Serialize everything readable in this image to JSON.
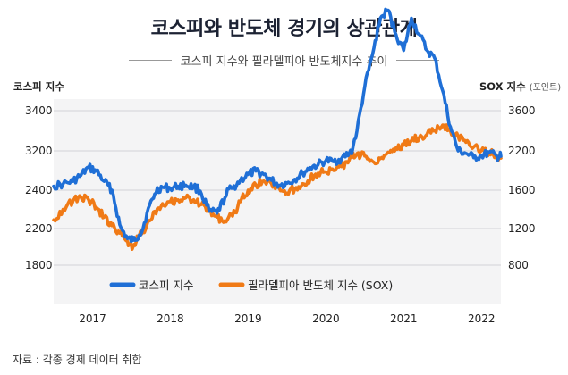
{
  "title": "코스피와 반도체 경기의 상관관계",
  "subtitle": "코스피 지수와 필라델피아 반도체지수 추이",
  "source": "자료 : 각종 경제 데이터 취합",
  "chart_data": {
    "type": "line",
    "title": "코스피와 반도체 경기의 상관관계",
    "xlabel": "",
    "x_ticks": [
      "2017",
      "2018",
      "2019",
      "2020",
      "2021",
      "2022"
    ],
    "xlim": [
      2016.6,
      2022.35
    ],
    "left_axis": {
      "label": "코스피 지수",
      "ticks": [
        3400,
        3200,
        2400,
        2200,
        1800
      ],
      "tick_labels": [
        "3400",
        "3200",
        "2400",
        "2200",
        "1800"
      ]
    },
    "right_axis": {
      "label": "SOX 지수",
      "unit": "(포인트)",
      "ticks": [
        3600,
        2200,
        1600,
        1200,
        800
      ],
      "tick_labels": [
        "3600",
        "2200",
        "1600",
        "1200",
        "800"
      ]
    },
    "series": [
      {
        "name": "코스피 지수",
        "axis": "left",
        "color": "#1f6fd6",
        "x": [
          2016.6,
          2016.72,
          2016.85,
          2016.95,
          2017.05,
          2017.15,
          2017.25,
          2017.35,
          2017.45,
          2017.55,
          2017.62,
          2017.7,
          2017.8,
          2017.9,
          2018.0,
          2018.1,
          2018.2,
          2018.3,
          2018.4,
          2018.5,
          2018.6,
          2018.7,
          2018.8,
          2018.9,
          2019.0,
          2019.1,
          2019.2,
          2019.3,
          2019.4,
          2019.5,
          2019.6,
          2019.7,
          2019.8,
          2019.9,
          2020.0,
          2020.1,
          2020.2,
          2020.3,
          2020.4,
          2020.5,
          2020.6,
          2020.7,
          2020.8,
          2020.9,
          2021.0,
          2021.1,
          2021.2,
          2021.3,
          2021.4,
          2021.5,
          2021.6,
          2021.7,
          2021.8,
          2021.9,
          2022.0,
          2022.1,
          2022.2,
          2022.3,
          2022.35
        ],
        "values": [
          2480,
          2520,
          2580,
          2700,
          2860,
          2790,
          2580,
          2400,
          2220,
          2090,
          2070,
          2130,
          2280,
          2380,
          2460,
          2440,
          2480,
          2500,
          2470,
          2380,
          2290,
          2280,
          2360,
          2440,
          2600,
          2720,
          2790,
          2720,
          2600,
          2500,
          2540,
          2620,
          2740,
          2860,
          2920,
          3000,
          2980,
          3040,
          3150,
          3300,
          3520,
          3680,
          3860,
          3900,
          3780,
          3700,
          3860,
          3780,
          3700,
          3660,
          3500,
          3320,
          3200,
          3150,
          3060,
          3100,
          3160,
          3080,
          3090
        ]
      },
      {
        "name": "필라델피아 반도체 지수 (SOX)",
        "axis": "right",
        "color": "#f07a16",
        "x": [
          2016.6,
          2016.72,
          2016.85,
          2016.95,
          2017.05,
          2017.15,
          2017.25,
          2017.35,
          2017.45,
          2017.55,
          2017.62,
          2017.7,
          2017.8,
          2017.9,
          2018.0,
          2018.1,
          2018.2,
          2018.3,
          2018.4,
          2018.5,
          2018.6,
          2018.7,
          2018.8,
          2018.9,
          2019.0,
          2019.1,
          2019.2,
          2019.3,
          2019.4,
          2019.5,
          2019.6,
          2019.7,
          2019.8,
          2019.9,
          2020.0,
          2020.1,
          2020.2,
          2020.3,
          2020.4,
          2020.5,
          2020.6,
          2020.7,
          2020.8,
          2020.9,
          2021.0,
          2021.1,
          2021.2,
          2021.3,
          2021.4,
          2021.5,
          2021.6,
          2021.7,
          2021.8,
          2021.9,
          2022.0,
          2022.1,
          2022.2,
          2022.3,
          2022.35
        ],
        "values": [
          1290,
          1400,
          1490,
          1530,
          1500,
          1420,
          1320,
          1230,
          1150,
          1060,
          1000,
          1120,
          1240,
          1380,
          1460,
          1480,
          1500,
          1520,
          1500,
          1450,
          1380,
          1320,
          1280,
          1330,
          1480,
          1600,
          1680,
          1740,
          1700,
          1630,
          1570,
          1620,
          1700,
          1780,
          1860,
          1880,
          1900,
          1960,
          2060,
          2160,
          2120,
          2040,
          2080,
          2180,
          2300,
          2400,
          2560,
          2660,
          2780,
          2920,
          3100,
          2900,
          2700,
          2500,
          2340,
          2220,
          2180,
          2120,
          2090
        ]
      }
    ]
  }
}
